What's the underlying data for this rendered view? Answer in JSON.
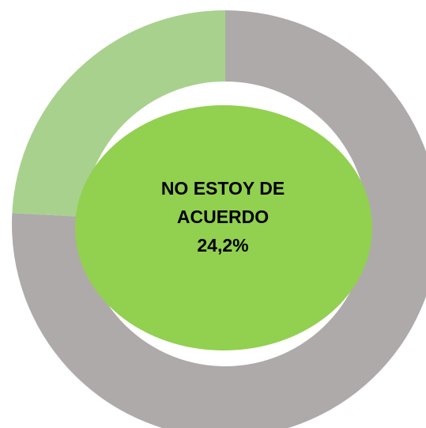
{
  "chart_data": {
    "type": "donut",
    "categories": [
      "NO ESTOY DE ACUERDO",
      null
    ],
    "values": [
      24.2,
      75.8
    ],
    "value_labels": [
      "24,2%",
      null
    ],
    "colors": [
      "#a9d18e",
      "#aeaaaa"
    ]
  }
}
